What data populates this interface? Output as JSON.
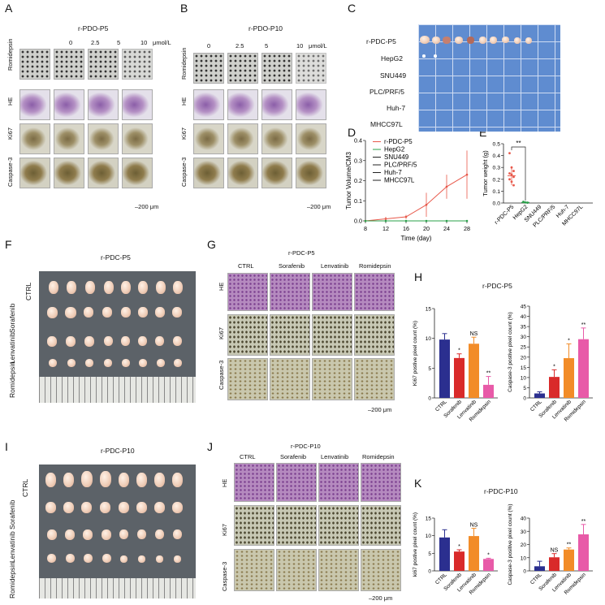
{
  "panels": {
    "A": "A",
    "B": "B",
    "C": "C",
    "D": "D",
    "E": "E",
    "F": "F",
    "G": "G",
    "H": "H",
    "I": "I",
    "J": "J",
    "K": "K"
  },
  "A": {
    "title": "r-PDO-P5",
    "doses": [
      "0",
      "2.5",
      "5",
      "10"
    ],
    "unit": "μmol/L",
    "rows": [
      "Romidepsin",
      "HE",
      "Ki67",
      "Caspase-3"
    ],
    "scale": "200 μm"
  },
  "B": {
    "title": "r-PDO-P10",
    "doses": [
      "0",
      "2.5",
      "5",
      "10"
    ],
    "unit": "μmol/L",
    "rows": [
      "Romidepsin",
      "HE",
      "Ki67",
      "Caspase-3"
    ],
    "scale": "200 μm"
  },
  "C": {
    "rows": [
      "r-PDC-P5",
      "HepG2",
      "SNU449",
      "PLC/PRF/5",
      "Huh-7",
      "MHCC97L"
    ]
  },
  "F": {
    "title": "r-PDC-P5",
    "rows": [
      "CTRL",
      "Sorafenib",
      "Lenvatinib",
      "Romidepsin"
    ]
  },
  "G": {
    "title": "r-PDC-P5",
    "cols": [
      "CTRL",
      "Sorafenib",
      "Lenvatinib",
      "Romidepsin"
    ],
    "rows": [
      "HE",
      "Ki67",
      "Caspase-3"
    ],
    "scale": "200 μm"
  },
  "H": {
    "title": "r-PDC-P5"
  },
  "I": {
    "title": "r-PDC-P10",
    "rows": [
      "CTRL",
      "Sorafenib",
      "Lenvatinib",
      "Romidepsin"
    ]
  },
  "J": {
    "title": "r-PDC-P10",
    "cols": [
      "CTRL",
      "Sorafenib",
      "Lenvatinib",
      "Romidepsin"
    ],
    "rows": [
      "HE",
      "Ki67",
      "Caspase-3"
    ],
    "scale": "200 μm"
  },
  "K": {
    "title": "r-PDC-P10"
  },
  "chart_data": [
    {
      "id": "D",
      "type": "line",
      "xlabel": "Time (day)",
      "ylabel": "Tumor Volume/CM3",
      "xlim": [
        8,
        28
      ],
      "ylim": [
        0,
        0.4
      ],
      "xticks": [
        8,
        12,
        16,
        20,
        24,
        28
      ],
      "yticks": [
        0.0,
        0.1,
        0.2,
        0.3,
        0.4
      ],
      "series": [
        {
          "name": "r-PDC-P5",
          "color": "#e8584a",
          "x": [
            8,
            12,
            16,
            20,
            24,
            28
          ],
          "values": [
            0,
            0.01,
            0.02,
            0.08,
            0.17,
            0.23
          ],
          "err": [
            0,
            0.01,
            0.01,
            0.06,
            0.06,
            0.12
          ]
        },
        {
          "name": "HepG2",
          "color": "#2aa04a",
          "x": [
            8,
            12,
            16,
            20,
            24,
            28
          ],
          "values": [
            0,
            0,
            0,
            0,
            0,
            0
          ]
        },
        {
          "name": "SNU449",
          "color": "#222222",
          "x": [],
          "values": []
        },
        {
          "name": "PLC/PRF/5",
          "color": "#222222",
          "x": [],
          "values": []
        },
        {
          "name": "Huh-7",
          "color": "#222222",
          "x": [],
          "values": []
        },
        {
          "name": "MHCC97L",
          "color": "#222222",
          "x": [],
          "values": []
        }
      ]
    },
    {
      "id": "E",
      "type": "scatter",
      "ylabel": "Tumor weight (g)",
      "ylim": [
        0,
        0.5
      ],
      "yticks": [
        0.0,
        0.1,
        0.2,
        0.3,
        0.4,
        0.5
      ],
      "categories": [
        "r-PDC-P5",
        "HepG2",
        "SNU449",
        "PLC/PRF/5",
        "Huh-7",
        "MHCC97L"
      ],
      "means": [
        0.23,
        0.005,
        0,
        0,
        0,
        0
      ],
      "sd": [
        0.08,
        0.003,
        0,
        0,
        0,
        0
      ],
      "points": [
        [
          0.42,
          0.3,
          0.27,
          0.25,
          0.24,
          0.22,
          0.2,
          0.18,
          0.15
        ],
        [
          0.01,
          0.005,
          0.003
        ],
        [],
        [],
        [],
        []
      ],
      "annotation": "**"
    },
    {
      "id": "H-ki67",
      "type": "bar",
      "ylabel": "Ki67 postive pixel count (%)",
      "ylim": [
        0,
        15
      ],
      "yticks": [
        0,
        5,
        10,
        15
      ],
      "categories": [
        "CTRL",
        "Sorafenib",
        "Lenvatinib",
        "Romidepsin"
      ],
      "values": [
        9.8,
        6.7,
        9.1,
        2.2
      ],
      "err": [
        1.0,
        0.7,
        1.1,
        1.4
      ],
      "colors": [
        "#2b2f8f",
        "#d92a2a",
        "#f28c28",
        "#e85aa8"
      ],
      "sig": [
        "",
        "*",
        "NS",
        "**"
      ]
    },
    {
      "id": "H-casp3",
      "type": "bar",
      "ylabel": "Caspase-3 postive pixel count (%)",
      "ylim": [
        0,
        45
      ],
      "yticks": [
        0,
        5,
        10,
        15,
        20,
        25,
        30,
        35,
        40,
        45
      ],
      "categories": [
        "CTRL",
        "Sorafenib",
        "Lenvatinib",
        "Romidepsin"
      ],
      "values": [
        2.2,
        10.3,
        19.5,
        28.8
      ],
      "err": [
        0.8,
        3.5,
        7,
        5.5
      ],
      "colors": [
        "#2b2f8f",
        "#d92a2a",
        "#f28c28",
        "#e85aa8"
      ],
      "sig": [
        "",
        "*",
        "*",
        "**"
      ]
    },
    {
      "id": "K-ki67",
      "type": "bar",
      "ylabel": "ki67 postive pixel count (%)",
      "ylim": [
        0,
        15
      ],
      "yticks": [
        0,
        5,
        10,
        15
      ],
      "categories": [
        "CTRL",
        "Sorafenib",
        "Lenvatinib",
        "Romidepsin"
      ],
      "values": [
        9.5,
        5.5,
        9.9,
        3.4
      ],
      "err": [
        2.2,
        0.5,
        2.2,
        0.2
      ],
      "colors": [
        "#2b2f8f",
        "#d92a2a",
        "#f28c28",
        "#e85aa8"
      ],
      "sig": [
        "",
        "*",
        "NS",
        "*"
      ]
    },
    {
      "id": "K-casp3",
      "type": "bar",
      "ylabel": "Caspase-3 positive pixel count (%)",
      "ylim": [
        0,
        40
      ],
      "yticks": [
        0,
        10,
        20,
        30,
        40
      ],
      "categories": [
        "CTRL",
        "Sorafenib",
        "Lenvatinib",
        "Romidepsin"
      ],
      "values": [
        3.5,
        10.3,
        16.2,
        27.7
      ],
      "err": [
        3.8,
        2.8,
        1.2,
        7.5
      ],
      "colors": [
        "#2b2f8f",
        "#d92a2a",
        "#f28c28",
        "#e85aa8"
      ],
      "sig": [
        "",
        "NS",
        "**",
        "**"
      ]
    }
  ]
}
